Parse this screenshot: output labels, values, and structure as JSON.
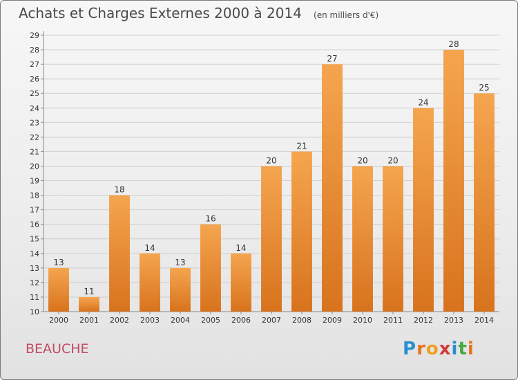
{
  "header": {
    "title": "Achats et Charges Externes 2000 à 2014",
    "subtitle": "(en milliers d'€)"
  },
  "commune": "BEAUCHE",
  "logo": {
    "text": "Proxiti",
    "letter_colors": [
      "#2a8fd0",
      "#e8731a",
      "#f0a020",
      "#d23a3a",
      "#2a8fd0",
      "#47a844",
      "#e8731a"
    ]
  },
  "colors": {
    "bar_light": "#f5a54f",
    "bar_dark": "#d8731d",
    "grid": "#cfcfcf",
    "axis_text": "#333333",
    "title": "#4a4a4a",
    "commune": "#c04a63"
  },
  "chart_data": {
    "type": "bar",
    "title": "Achats et Charges Externes 2000 à 2014",
    "subtitle": "(en milliers d'€)",
    "xlabel": "",
    "ylabel": "",
    "categories": [
      "2000",
      "2001",
      "2002",
      "2003",
      "2004",
      "2005",
      "2006",
      "2007",
      "2008",
      "2009",
      "2010",
      "2011",
      "2012",
      "2013",
      "2014"
    ],
    "values": [
      13,
      11,
      18,
      14,
      13,
      16,
      14,
      20,
      21,
      27,
      20,
      20,
      24,
      28,
      25
    ],
    "ylim": [
      10,
      29
    ],
    "yticks": [
      10,
      11,
      12,
      13,
      14,
      15,
      16,
      17,
      18,
      19,
      20,
      21,
      22,
      23,
      24,
      25,
      26,
      27,
      28,
      29
    ],
    "grid": true,
    "legend": "none",
    "data_labels": true
  }
}
